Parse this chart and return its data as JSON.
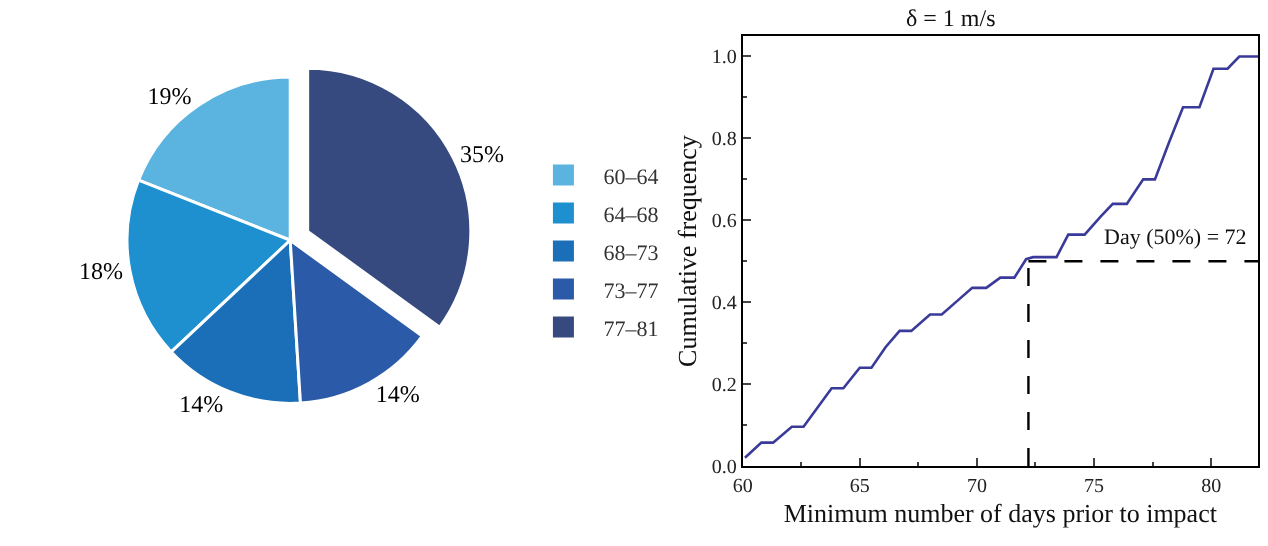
{
  "chart_data": [
    {
      "type": "pie",
      "categories": [
        "60–64",
        "64–68",
        "68–73",
        "73–77",
        "77–81"
      ],
      "values": [
        19,
        18,
        14,
        14,
        35
      ],
      "colors": [
        "#5bb3e0",
        "#1e90d0",
        "#1a6fb8",
        "#2a5aa8",
        "#374a80"
      ],
      "value_labels": [
        "19%",
        "18%",
        "14%",
        "14%",
        "35%"
      ],
      "legend": "right"
    },
    {
      "type": "line",
      "title": "δ = 1 m/s",
      "xlabel": "Minimum number of days prior to impact",
      "ylabel": "Cumulative frequency",
      "xlim": [
        60,
        82
      ],
      "ylim": [
        0,
        1.05
      ],
      "xticks": [
        60,
        65,
        70,
        75,
        80
      ],
      "yticks": [
        {
          "value": 0,
          "label": "0.0"
        },
        {
          "value": 0.2,
          "label": "0.2"
        },
        {
          "value": 0.4,
          "label": "0.4"
        },
        {
          "value": 0.6,
          "label": "0.6"
        },
        {
          "value": 0.8,
          "label": "0.8"
        },
        {
          "value": 1,
          "label": "1.0"
        }
      ],
      "legend": false,
      "series": [
        {
          "color": "#3a3a9a",
          "x": [
            60.1,
            60.8,
            61.3,
            62.1,
            62.6,
            63.8,
            64.3,
            65.0,
            65.5,
            66.1,
            66.7,
            67.2,
            68.0,
            68.5,
            69.2,
            69.8,
            70.4,
            71.0,
            71.6,
            72.1,
            72.4,
            73.4,
            73.9,
            74.6,
            75.3,
            75.8,
            76.4,
            77.1,
            77.6,
            78.2,
            78.8,
            79.5,
            80.1,
            80.7,
            81.2,
            82.0
          ],
          "values": [
            0.02,
            0.057,
            0.057,
            0.096,
            0.096,
            0.19,
            0.19,
            0.24,
            0.24,
            0.29,
            0.33,
            0.33,
            0.37,
            0.37,
            0.405,
            0.435,
            0.435,
            0.46,
            0.46,
            0.505,
            0.51,
            0.51,
            0.565,
            0.565,
            0.61,
            0.64,
            0.64,
            0.7,
            0.7,
            0.79,
            0.876,
            0.876,
            0.97,
            0.97,
            1.0,
            1.0
          ]
        }
      ],
      "ref_lines": [
        {
          "axis": "y",
          "value": 0.5,
          "label": "Day (50%) = 72",
          "line_style": "dashed",
          "color": "#000000"
        },
        {
          "axis": "x",
          "value": 72.2,
          "line_style": "dashed",
          "color": "#000000"
        }
      ]
    }
  ]
}
